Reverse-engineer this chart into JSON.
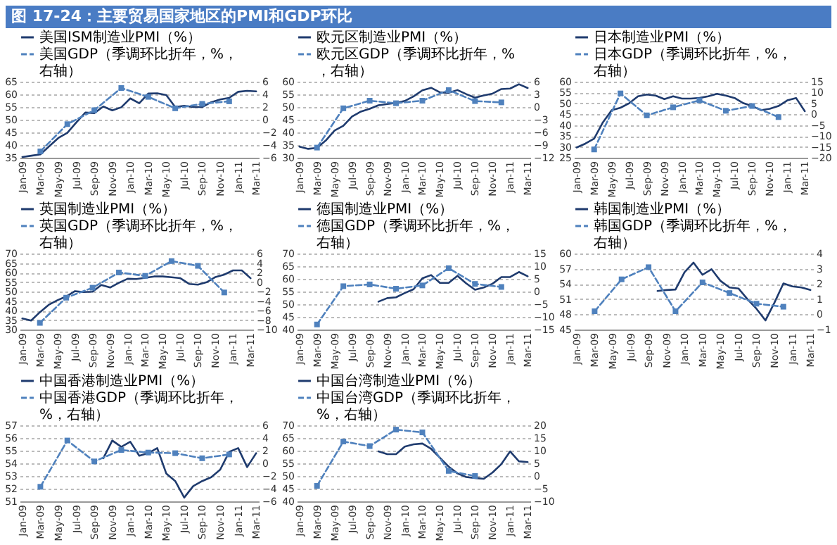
{
  "chart_data": [
    {
      "type": "line",
      "title": "图 17-24：主要贸易国家地区的PMI和GDP环比",
      "categories": [
        "Jan-09",
        null,
        "Mar-09",
        null,
        "May-09",
        null,
        "Jul-09",
        null,
        "Sep-09",
        null,
        "Nov-09",
        null,
        "Jan-10",
        null,
        "Mar-10",
        null,
        "May-10",
        null,
        "Jul-10",
        null,
        "Sep-10",
        null,
        "Nov-10",
        null,
        "Jan-11",
        null,
        "Mar-11"
      ],
      "ylim": [
        35,
        65
      ],
      "yticks": [
        35,
        40,
        45,
        50,
        55,
        60,
        65
      ],
      "y2lim": [
        -6,
        6
      ],
      "y2ticks": [
        -6,
        -4,
        -2,
        0,
        2,
        4,
        6
      ],
      "grid": "y",
      "legend": "top",
      "series": [
        {
          "name": "美国ISM制造业PMI（%）",
          "color": "#1f3b6e",
          "line_style": "solid",
          "marker": "none",
          "values": [
            35.3,
            35.8,
            36.3,
            39.6,
            42.8,
            44.8,
            48.9,
            52.8,
            52.6,
            55.2,
            53.7,
            54.9,
            58.4,
            56.5,
            60.3,
            60.4,
            59.7,
            55.0,
            55.5,
            55.0,
            55.0,
            56.9,
            58.0,
            58.6,
            61.0,
            61.4,
            61.2
          ]
        },
        {
          "name": "美国GDP（季调环比折年，%，右轴）",
          "color": "#4f81bd",
          "axis": "y2",
          "line_style": "dashed",
          "marker": "square",
          "values": [
            null,
            null,
            -5.0,
            null,
            null,
            -0.7,
            null,
            null,
            1.5,
            null,
            null,
            5.0,
            null,
            null,
            3.6,
            null,
            null,
            1.8,
            null,
            null,
            2.5,
            null,
            null,
            2.9,
            null,
            null,
            null
          ]
        }
      ]
    },
    {
      "type": "line",
      "categories": [
        "Jan-09",
        null,
        "Mar-09",
        null,
        "May-09",
        null,
        "Jul-09",
        null,
        "Sep-09",
        null,
        "Nov-09",
        null,
        "Jan-10",
        null,
        "Mar-10",
        null,
        "May-10",
        null,
        "Jul-10",
        null,
        "Sep-10",
        null,
        "Nov-10",
        null,
        "Jan-11",
        null,
        "Mar-11"
      ],
      "ylim": [
        30,
        60
      ],
      "yticks": [
        30,
        35,
        40,
        45,
        50,
        55,
        60
      ],
      "y2lim": [
        -12,
        6
      ],
      "y2ticks": [
        -12,
        -9,
        -6,
        -3,
        0,
        3,
        6
      ],
      "grid": "y",
      "legend": "top",
      "series": [
        {
          "name": "欧元区制造业PMI（%）",
          "color": "#1f3b6e",
          "line_style": "solid",
          "marker": "none",
          "values": [
            34.4,
            33.5,
            33.9,
            36.8,
            40.7,
            42.6,
            46.3,
            48.2,
            49.3,
            50.7,
            51.2,
            51.6,
            52.4,
            54.2,
            56.6,
            57.6,
            55.8,
            55.6,
            56.7,
            55.1,
            53.7,
            54.6,
            55.3,
            57.1,
            57.3,
            59.0,
            57.5
          ]
        },
        {
          "name": "欧元区GDP（季调环比折年，%，右轴）",
          "color": "#4f81bd",
          "axis": "y2",
          "line_style": "dashed",
          "marker": "square",
          "values": [
            null,
            null,
            -9.6,
            null,
            null,
            -0.3,
            null,
            null,
            1.5,
            null,
            null,
            0.9,
            null,
            null,
            1.5,
            null,
            null,
            4.0,
            null,
            null,
            1.4,
            null,
            null,
            1.1,
            null,
            null,
            null
          ]
        }
      ]
    },
    {
      "type": "line",
      "categories": [
        "Jan-09",
        null,
        "Mar-09",
        null,
        "May-09",
        null,
        "Jul-09",
        null,
        "Sep-09",
        null,
        "Nov-09",
        null,
        "Jan-10",
        null,
        "Mar-10",
        null,
        "May-10",
        null,
        "Jul-10",
        null,
        "Sep-10",
        null,
        "Nov-10",
        null,
        "Jan-11",
        null,
        "Mar-11"
      ],
      "ylim": [
        25,
        60
      ],
      "yticks": [
        25,
        30,
        35,
        40,
        45,
        50,
        55,
        60
      ],
      "y2lim": [
        -20,
        15
      ],
      "y2ticks": [
        -20,
        -15,
        -10,
        -5,
        0,
        5,
        10,
        15
      ],
      "grid": "y",
      "legend": "top",
      "series": [
        {
          "name": "日本制造业PMI（%）",
          "color": "#1f3b6e",
          "line_style": "solid",
          "marker": "none",
          "values": [
            29.7,
            31.5,
            33.8,
            41.3,
            46.9,
            48.0,
            50.1,
            53.3,
            54.1,
            53.6,
            52.0,
            53.3,
            52.2,
            52.2,
            52.5,
            53.3,
            54.4,
            53.6,
            52.5,
            50.1,
            48.8,
            46.9,
            47.5,
            48.8,
            51.4,
            52.5,
            46.4
          ]
        },
        {
          "name": "日本GDP（季调环比折年，%，右轴）",
          "color": "#4f81bd",
          "axis": "y2",
          "line_style": "dashed",
          "marker": "square",
          "values": [
            null,
            null,
            -16.2,
            null,
            null,
            9.6,
            null,
            null,
            -0.5,
            null,
            null,
            3.2,
            null,
            null,
            6.4,
            null,
            null,
            1.6,
            null,
            null,
            3.8,
            null,
            null,
            -1.3,
            null,
            null,
            null
          ]
        }
      ]
    },
    {
      "type": "line",
      "categories": [
        "Jan-09",
        null,
        "Mar-09",
        null,
        "May-09",
        null,
        "Jul-09",
        null,
        "Sep-09",
        null,
        "Nov-09",
        null,
        "Jan-10",
        null,
        "Mar-10",
        null,
        "May-10",
        null,
        "Jul-10",
        null,
        "Sep-10",
        null,
        "Nov-10",
        null,
        "Jan-11",
        null,
        "Mar-11"
      ],
      "ylim": [
        30,
        70
      ],
      "yticks": [
        30,
        35,
        40,
        45,
        50,
        55,
        60,
        65,
        70
      ],
      "y2lim": [
        -10,
        6
      ],
      "y2ticks": [
        -10,
        -8,
        -6,
        -4,
        -2,
        0,
        2,
        4,
        6
      ],
      "grid": "y",
      "legend": "top",
      "series": [
        {
          "name": "英国制造业PMI（%）",
          "color": "#1f3b6e",
          "line_style": "solid",
          "marker": "none",
          "values": [
            35.8,
            34.7,
            39.1,
            43.0,
            45.4,
            47.4,
            50.2,
            49.7,
            49.9,
            53.4,
            52.1,
            54.6,
            56.7,
            56.6,
            57.2,
            57.9,
            57.9,
            57.5,
            57.0,
            54.0,
            53.6,
            54.9,
            57.6,
            58.9,
            61.1,
            61.1,
            57.0
          ]
        },
        {
          "name": "英国GDP（季调环比折年，%，右轴）",
          "color": "#4f81bd",
          "axis": "y2",
          "line_style": "dashed",
          "marker": "square",
          "values": [
            null,
            null,
            -8.6,
            null,
            null,
            -3.3,
            null,
            null,
            -1.2,
            null,
            null,
            2.0,
            null,
            null,
            1.3,
            null,
            null,
            4.4,
            null,
            null,
            3.4,
            null,
            null,
            -2.2,
            null,
            null,
            null
          ]
        }
      ]
    },
    {
      "type": "line",
      "categories": [
        "Jan-09",
        null,
        "Mar-09",
        null,
        "May-09",
        null,
        "Jul-09",
        null,
        "Sep-09",
        null,
        "Nov-09",
        null,
        "Jan-10",
        null,
        "Mar-10",
        null,
        "May-10",
        null,
        "Jul-10",
        null,
        "Sep-10",
        null,
        "Nov-10",
        null,
        "Jan-11",
        null,
        "Mar-11"
      ],
      "ylim": [
        40,
        70
      ],
      "yticks": [
        40,
        45,
        50,
        55,
        60,
        65,
        70
      ],
      "y2lim": [
        -15,
        15
      ],
      "y2ticks": [
        -15,
        -10,
        -5,
        0,
        5,
        10,
        15
      ],
      "grid": "y",
      "legend": "top",
      "series": [
        {
          "name": "德国制造业PMI（%）",
          "color": "#1f3b6e",
          "line_style": "solid",
          "marker": "none",
          "values": [
            null,
            null,
            null,
            null,
            null,
            null,
            null,
            null,
            null,
            51.0,
            52.4,
            52.7,
            54.4,
            55.9,
            60.2,
            61.5,
            58.4,
            58.4,
            61.2,
            58.2,
            55.7,
            56.6,
            58.1,
            60.7,
            60.7,
            62.7,
            61.0
          ]
        },
        {
          "name": "德国GDP（季调环比折年，%，右轴）",
          "color": "#4f81bd",
          "axis": "y2",
          "line_style": "dashed",
          "marker": "square",
          "values": [
            null,
            null,
            -13,
            null,
            null,
            2.1,
            null,
            null,
            2.8,
            null,
            null,
            1.1,
            null,
            null,
            2.4,
            null,
            null,
            9.2,
            null,
            null,
            3.0,
            null,
            null,
            1.8,
            null,
            null,
            null
          ]
        }
      ]
    },
    {
      "type": "line",
      "categories": [
        "Jan-09",
        null,
        "Mar-09",
        null,
        "May-09",
        null,
        "Jul-09",
        null,
        "Sep-09",
        null,
        "Nov-09",
        null,
        "Jan-10",
        null,
        "Mar-10",
        null,
        "May-10",
        null,
        "Jul-10",
        null,
        "Sep-10",
        null,
        "Nov-10",
        null,
        "Jan-11",
        null,
        "Mar-11"
      ],
      "ylim": [
        45,
        60
      ],
      "yticks": [
        45,
        48,
        51,
        54,
        57,
        60
      ],
      "y2lim": [
        -1,
        4
      ],
      "y2ticks": [
        -1,
        0,
        1,
        2,
        3,
        4
      ],
      "grid": "y",
      "legend": "top",
      "series": [
        {
          "name": "韩国制造业PMI（%）",
          "color": "#1f3b6e",
          "line_style": "solid",
          "marker": "none",
          "values": [
            null,
            null,
            null,
            null,
            null,
            null,
            null,
            null,
            null,
            52.6,
            52.8,
            52.9,
            56.3,
            58.2,
            55.8,
            56.9,
            54.6,
            53.3,
            53.1,
            51.0,
            49.1,
            46.8,
            50.3,
            54.1,
            53.5,
            53.3,
            52.8
          ]
        },
        {
          "name": "韩国GDP（季调环比折年，%，右轴）",
          "color": "#4f81bd",
          "axis": "y2",
          "line_style": "dashed",
          "marker": "square",
          "values": [
            null,
            null,
            0.2,
            null,
            null,
            2.3,
            null,
            null,
            3.1,
            null,
            null,
            0.2,
            null,
            null,
            2.1,
            null,
            null,
            1.4,
            null,
            null,
            0.7,
            null,
            null,
            0.5,
            null,
            null,
            null
          ]
        }
      ]
    },
    {
      "type": "line",
      "categories": [
        "Jan-09",
        null,
        "Mar-09",
        null,
        "May-09",
        null,
        "Jul-09",
        null,
        "Sep-09",
        null,
        "Nov-09",
        null,
        "Jan-10",
        null,
        "Mar-10",
        null,
        "May-10",
        null,
        "Jul-10",
        null,
        "Sep-10",
        null,
        "Nov-10",
        null,
        "Jan-11",
        null,
        "Mar-11"
      ],
      "ylim": [
        51,
        57
      ],
      "yticks": [
        51,
        52,
        53,
        54,
        55,
        56,
        57
      ],
      "y2lim": [
        -6,
        6
      ],
      "y2ticks": [
        -6,
        -4,
        -2,
        0,
        2,
        4,
        6
      ],
      "grid": "y",
      "legend": "top",
      "series": [
        {
          "name": "中国香港制造业PMI（%）",
          "color": "#1f3b6e",
          "line_style": "solid",
          "marker": "none",
          "values": [
            null,
            null,
            null,
            null,
            null,
            null,
            null,
            null,
            null,
            54.4,
            55.8,
            55.3,
            55.7,
            54.6,
            54.8,
            55.2,
            53.2,
            52.6,
            51.3,
            52.2,
            52.6,
            52.9,
            53.5,
            54.9,
            55.2,
            53.7,
            54.8
          ]
        },
        {
          "name": "中国香港GDP（季调环比折年，%，右轴）",
          "color": "#4f81bd",
          "axis": "y2",
          "line_style": "dashed",
          "marker": "square",
          "values": [
            null,
            null,
            -3.7,
            null,
            null,
            3.6,
            null,
            null,
            0.3,
            null,
            null,
            2.1,
            null,
            null,
            1.7,
            null,
            null,
            1.6,
            null,
            null,
            0.8,
            null,
            null,
            1.4,
            null,
            null,
            null
          ]
        }
      ]
    },
    {
      "type": "line",
      "categories": [
        "Jan-09",
        null,
        "Mar-09",
        null,
        "May-09",
        null,
        "Jul-09",
        null,
        "Sep-09",
        null,
        "Nov-09",
        null,
        "Jan-10",
        null,
        "Mar-10",
        null,
        "May-10",
        null,
        "Jul-10",
        null,
        "Sep-10",
        null,
        "Nov-10",
        null,
        "Jan-11",
        null,
        "Mar-11"
      ],
      "ylim": [
        40,
        70
      ],
      "yticks": [
        40,
        45,
        50,
        55,
        60,
        65,
        70
      ],
      "y2lim": [
        -10,
        20
      ],
      "y2ticks": [
        -10,
        -5,
        0,
        5,
        10,
        15,
        20
      ],
      "grid": "y",
      "legend": "top",
      "series": [
        {
          "name": "中国台湾制造业PMI（%）",
          "color": "#1f3b6e",
          "line_style": "solid",
          "marker": "none",
          "values": [
            null,
            null,
            null,
            null,
            null,
            null,
            null,
            null,
            null,
            59.7,
            58.6,
            58.6,
            61.6,
            62.5,
            62.8,
            60.7,
            57.2,
            53.7,
            51.0,
            49.6,
            49.2,
            48.9,
            51.4,
            54.7,
            59.7,
            55.8,
            55.5
          ]
        },
        {
          "name": "中国台湾GDP（季调环比折年，%，右轴）",
          "color": "#4f81bd",
          "axis": "y2",
          "line_style": "dashed",
          "marker": "square",
          "values": [
            null,
            null,
            -3.9,
            null,
            null,
            13.6,
            null,
            null,
            11.8,
            null,
            null,
            18.3,
            null,
            null,
            17.2,
            null,
            null,
            2.0,
            null,
            null,
            0.0,
            null,
            null,
            null,
            null,
            null,
            null
          ]
        }
      ]
    }
  ]
}
